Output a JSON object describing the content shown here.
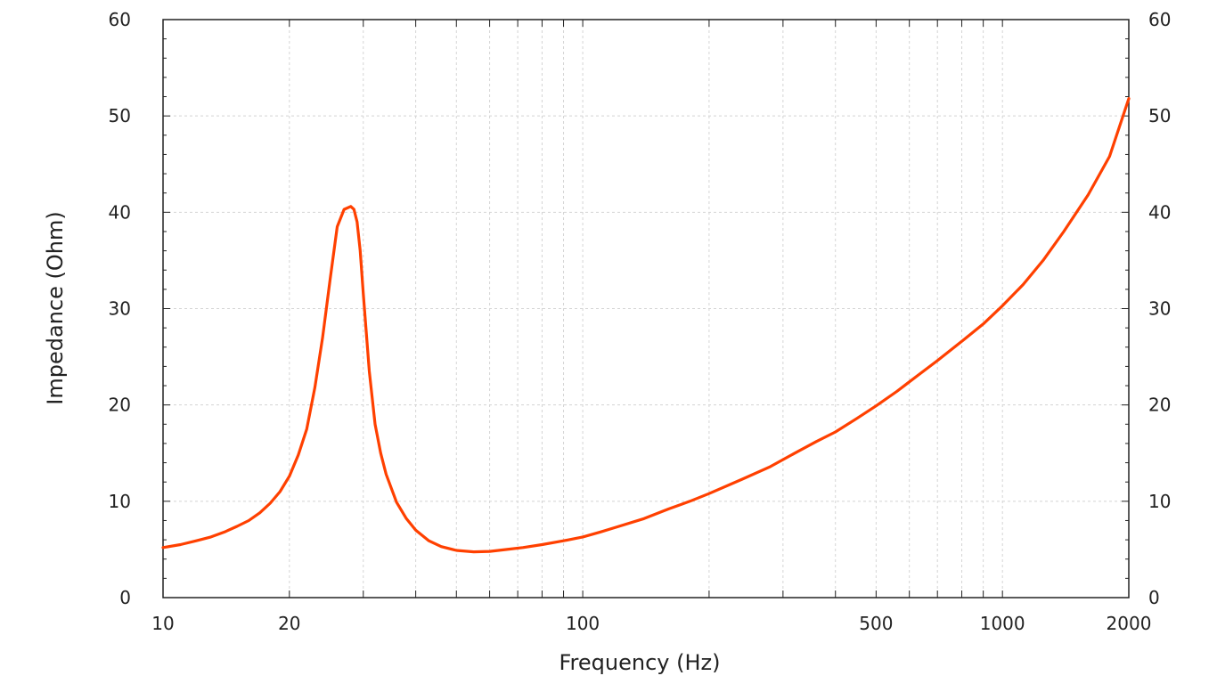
{
  "chart_data": {
    "type": "line",
    "xlabel": "Frequency (Hz)",
    "ylabel": "Impedance (Ohm)",
    "x_scale": "log",
    "xlim": [
      10,
      2000
    ],
    "ylim": [
      0,
      60
    ],
    "x_tick_labels": [
      "10",
      "20",
      "100",
      "500",
      "1000",
      "2000"
    ],
    "x_tick_values": [
      10,
      20,
      100,
      500,
      1000,
      2000
    ],
    "y_tick_labels": [
      "0",
      "10",
      "20",
      "30",
      "40",
      "50",
      "60"
    ],
    "y_tick_values": [
      0,
      10,
      20,
      30,
      40,
      50,
      60
    ],
    "right_axis_labels": true,
    "grid": true,
    "series": [
      {
        "color": "#ff4000",
        "x": [
          10,
          11,
          12,
          13,
          14,
          15,
          16,
          17,
          18,
          19,
          20,
          21,
          22,
          23,
          24,
          25,
          26,
          27,
          28,
          28.5,
          29,
          29.5,
          30,
          31,
          32,
          33,
          34,
          36,
          38,
          40,
          43,
          46,
          50,
          55,
          60,
          66,
          72,
          80,
          90,
          100,
          110,
          120,
          140,
          160,
          180,
          200,
          240,
          280,
          320,
          360,
          400,
          450,
          500,
          560,
          630,
          700,
          800,
          900,
          1000,
          1120,
          1250,
          1400,
          1600,
          1800,
          2000
        ],
        "y": [
          5.2,
          5.5,
          5.9,
          6.3,
          6.8,
          7.4,
          8.0,
          8.8,
          9.8,
          11.0,
          12.6,
          14.8,
          17.5,
          21.8,
          27.0,
          33.0,
          38.5,
          40.3,
          40.6,
          40.3,
          39.0,
          36.0,
          31.5,
          23.5,
          18.0,
          15.0,
          12.8,
          9.9,
          8.2,
          7.0,
          5.9,
          5.3,
          4.9,
          4.75,
          4.8,
          5.0,
          5.2,
          5.5,
          5.9,
          6.3,
          6.8,
          7.3,
          8.2,
          9.2,
          10.0,
          10.8,
          12.3,
          13.6,
          15.0,
          16.2,
          17.2,
          18.6,
          19.9,
          21.4,
          23.1,
          24.6,
          26.6,
          28.4,
          30.3,
          32.5,
          35.0,
          38.0,
          41.8,
          45.8,
          51.8
        ]
      }
    ]
  }
}
